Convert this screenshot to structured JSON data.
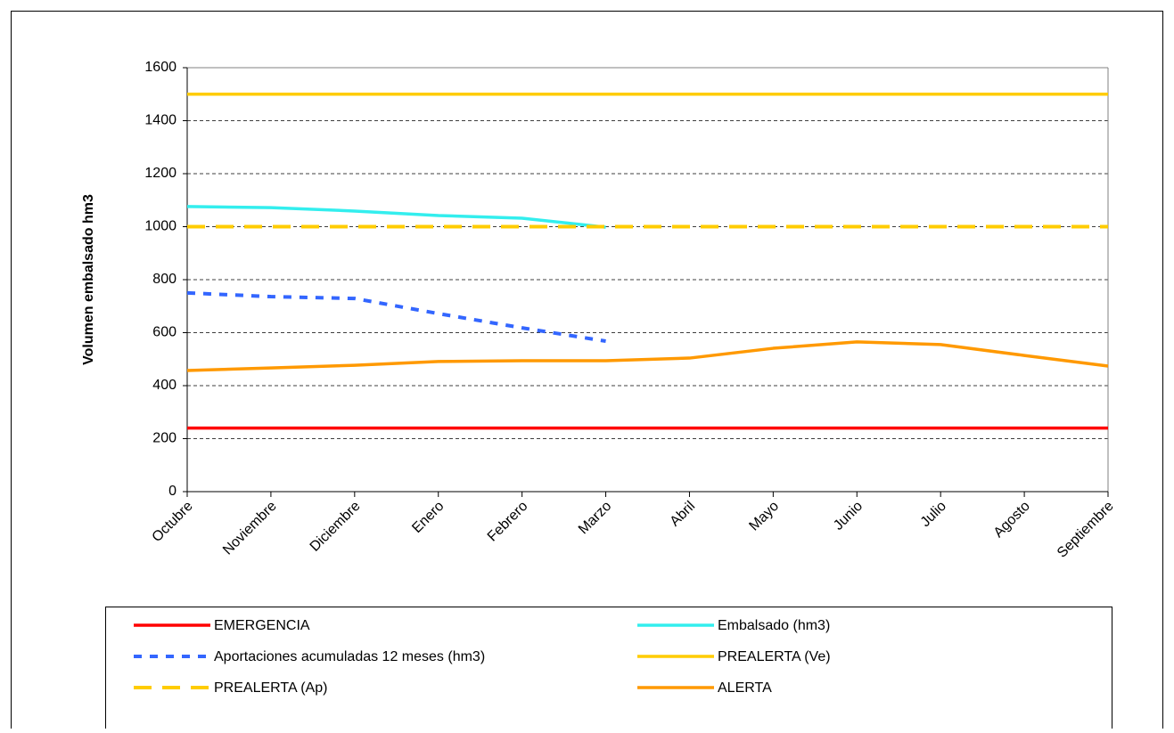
{
  "chart_data": {
    "type": "line",
    "y_label": "Volumen embalsado hm3",
    "categories": [
      "Octubre",
      "Noviembre",
      "Diciembre",
      "Enero",
      "Febrero",
      "Marzo",
      "Abril",
      "Mayo",
      "Junio",
      "Julio",
      "Agosto",
      "Septiembre"
    ],
    "ylim": [
      0,
      1600
    ],
    "yticks": [
      0,
      200,
      400,
      600,
      800,
      1000,
      1200,
      1400,
      1600
    ],
    "grid": true,
    "legend": "bottom",
    "series": [
      {
        "name": "EMERGENCIA",
        "color": "#ff0000",
        "dash": false,
        "values": [
          240,
          240,
          240,
          240,
          240,
          240,
          240,
          240,
          240,
          240,
          240,
          240
        ]
      },
      {
        "name": "Embalsado (hm3)",
        "color": "#33eeee",
        "dash": false,
        "values": [
          1076,
          1072,
          1059,
          1042,
          1032,
          998,
          null,
          null,
          null,
          null,
          null,
          null
        ]
      },
      {
        "name": "Aportaciones acumuladas 12 meses (hm3)",
        "color": "#3366ff",
        "dash": true,
        "values": [
          750,
          736,
          729,
          672,
          618,
          568,
          null,
          null,
          null,
          null,
          null,
          null
        ]
      },
      {
        "name": "PREALERTA (Ve)",
        "color": "#ffcc00",
        "dash": false,
        "values": [
          1500,
          1500,
          1500,
          1500,
          1500,
          1500,
          1500,
          1500,
          1500,
          1500,
          1500,
          1500
        ]
      },
      {
        "name": "PREALERTA (Ap)",
        "color": "#ffcc00",
        "dash": true,
        "values": [
          1000,
          1000,
          1000,
          1000,
          1000,
          1000,
          1000,
          1000,
          1000,
          1000,
          1000,
          1000
        ]
      },
      {
        "name": "ALERTA",
        "color": "#ff9900",
        "dash": false,
        "values": [
          457,
          467,
          477,
          491,
          494,
          494,
          504,
          541,
          565,
          555,
          514,
          474
        ]
      }
    ]
  }
}
